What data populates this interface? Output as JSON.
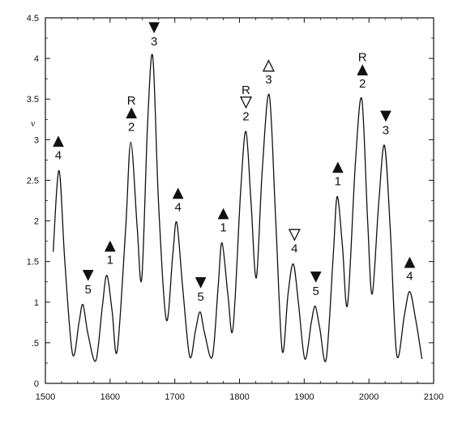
{
  "chart_data": {
    "type": "line",
    "title": "",
    "xlabel": "",
    "ylabel": "v",
    "xlim": [
      1500,
      2100
    ],
    "ylim": [
      0,
      4.5
    ],
    "grid": false,
    "x_ticks": [
      1500,
      1600,
      1700,
      1800,
      1900,
      2000,
      2100
    ],
    "x_tick_labels": [
      "1500",
      "1600",
      "1700",
      "1800",
      "1900",
      "2000",
      "2100"
    ],
    "y_ticks": [
      0,
      0.5,
      1,
      1.5,
      2,
      2.5,
      3,
      3.5,
      4,
      4.5
    ],
    "y_tick_labels": [
      "0",
      ".5",
      "1",
      "1.5",
      "2",
      "2.5",
      "3",
      "3.5",
      "4",
      "4.5"
    ],
    "series": [
      {
        "points": [
          [
            1512,
            1.62
          ],
          [
            1521,
            2.62
          ],
          [
            1530,
            1.5
          ],
          [
            1542,
            0.36
          ],
          [
            1552,
            0.75
          ],
          [
            1558,
            0.97
          ],
          [
            1566,
            0.6
          ],
          [
            1578,
            0.28
          ],
          [
            1588,
            0.95
          ],
          [
            1595,
            1.33
          ],
          [
            1603,
            0.9
          ],
          [
            1611,
            0.4
          ],
          [
            1624,
            1.9
          ],
          [
            1632,
            2.97
          ],
          [
            1642,
            1.9
          ],
          [
            1649,
            1.3
          ],
          [
            1658,
            3.2
          ],
          [
            1666,
            4.02
          ],
          [
            1675,
            2.2
          ],
          [
            1687,
            0.78
          ],
          [
            1697,
            1.6
          ],
          [
            1703,
            1.98
          ],
          [
            1712,
            1.2
          ],
          [
            1723,
            0.33
          ],
          [
            1732,
            0.65
          ],
          [
            1739,
            0.88
          ],
          [
            1746,
            0.62
          ],
          [
            1758,
            0.33
          ],
          [
            1767,
            1.2
          ],
          [
            1773,
            1.73
          ],
          [
            1782,
            1.1
          ],
          [
            1790,
            0.68
          ],
          [
            1802,
            2.4
          ],
          [
            1810,
            3.1
          ],
          [
            1818,
            2.2
          ],
          [
            1826,
            1.3
          ],
          [
            1835,
            2.6
          ],
          [
            1846,
            3.55
          ],
          [
            1856,
            2.0
          ],
          [
            1866,
            0.4
          ],
          [
            1875,
            1.1
          ],
          [
            1883,
            1.47
          ],
          [
            1891,
            1.0
          ],
          [
            1901,
            0.3
          ],
          [
            1911,
            0.75
          ],
          [
            1917,
            0.95
          ],
          [
            1924,
            0.68
          ],
          [
            1934,
            0.3
          ],
          [
            1945,
            1.6
          ],
          [
            1951,
            2.3
          ],
          [
            1959,
            1.7
          ],
          [
            1967,
            0.97
          ],
          [
            1979,
            2.7
          ],
          [
            1989,
            3.5
          ],
          [
            1998,
            2.0
          ],
          [
            2005,
            1.1
          ],
          [
            2015,
            2.2
          ],
          [
            2024,
            2.93
          ],
          [
            2033,
            1.9
          ],
          [
            2043,
            0.35
          ],
          [
            2055,
            0.85
          ],
          [
            2063,
            1.13
          ],
          [
            2072,
            0.8
          ],
          [
            2082,
            0.3
          ]
        ]
      }
    ],
    "annotations": [
      {
        "x": 1520,
        "symbol": "filled-up",
        "label": "4",
        "r": ""
      },
      {
        "x": 1566,
        "symbol": "filled-down",
        "label": "5",
        "r": ""
      },
      {
        "x": 1600,
        "symbol": "filled-up",
        "label": "1",
        "r": ""
      },
      {
        "x": 1633,
        "symbol": "filled-up",
        "label": "2",
        "r": "R"
      },
      {
        "x": 1668,
        "symbol": "filled-down",
        "label": "3",
        "r": ""
      },
      {
        "x": 1705,
        "symbol": "filled-up",
        "label": "4",
        "r": ""
      },
      {
        "x": 1740,
        "symbol": "filled-down",
        "label": "5",
        "r": ""
      },
      {
        "x": 1775,
        "symbol": "filled-up",
        "label": "1",
        "r": ""
      },
      {
        "x": 1810,
        "symbol": "open-down",
        "label": "2",
        "r": "R"
      },
      {
        "x": 1845,
        "symbol": "open-up",
        "label": "3",
        "r": ""
      },
      {
        "x": 1885,
        "symbol": "open-down",
        "label": "4",
        "r": ""
      },
      {
        "x": 1918,
        "symbol": "filled-down",
        "label": "5",
        "r": ""
      },
      {
        "x": 1952,
        "symbol": "filled-up",
        "label": "1",
        "r": ""
      },
      {
        "x": 1990,
        "symbol": "filled-up",
        "label": "2",
        "r": "R"
      },
      {
        "x": 2026,
        "symbol": "filled-down",
        "label": "3",
        "r": ""
      },
      {
        "x": 2063,
        "symbol": "filled-up",
        "label": "4",
        "r": ""
      }
    ]
  }
}
